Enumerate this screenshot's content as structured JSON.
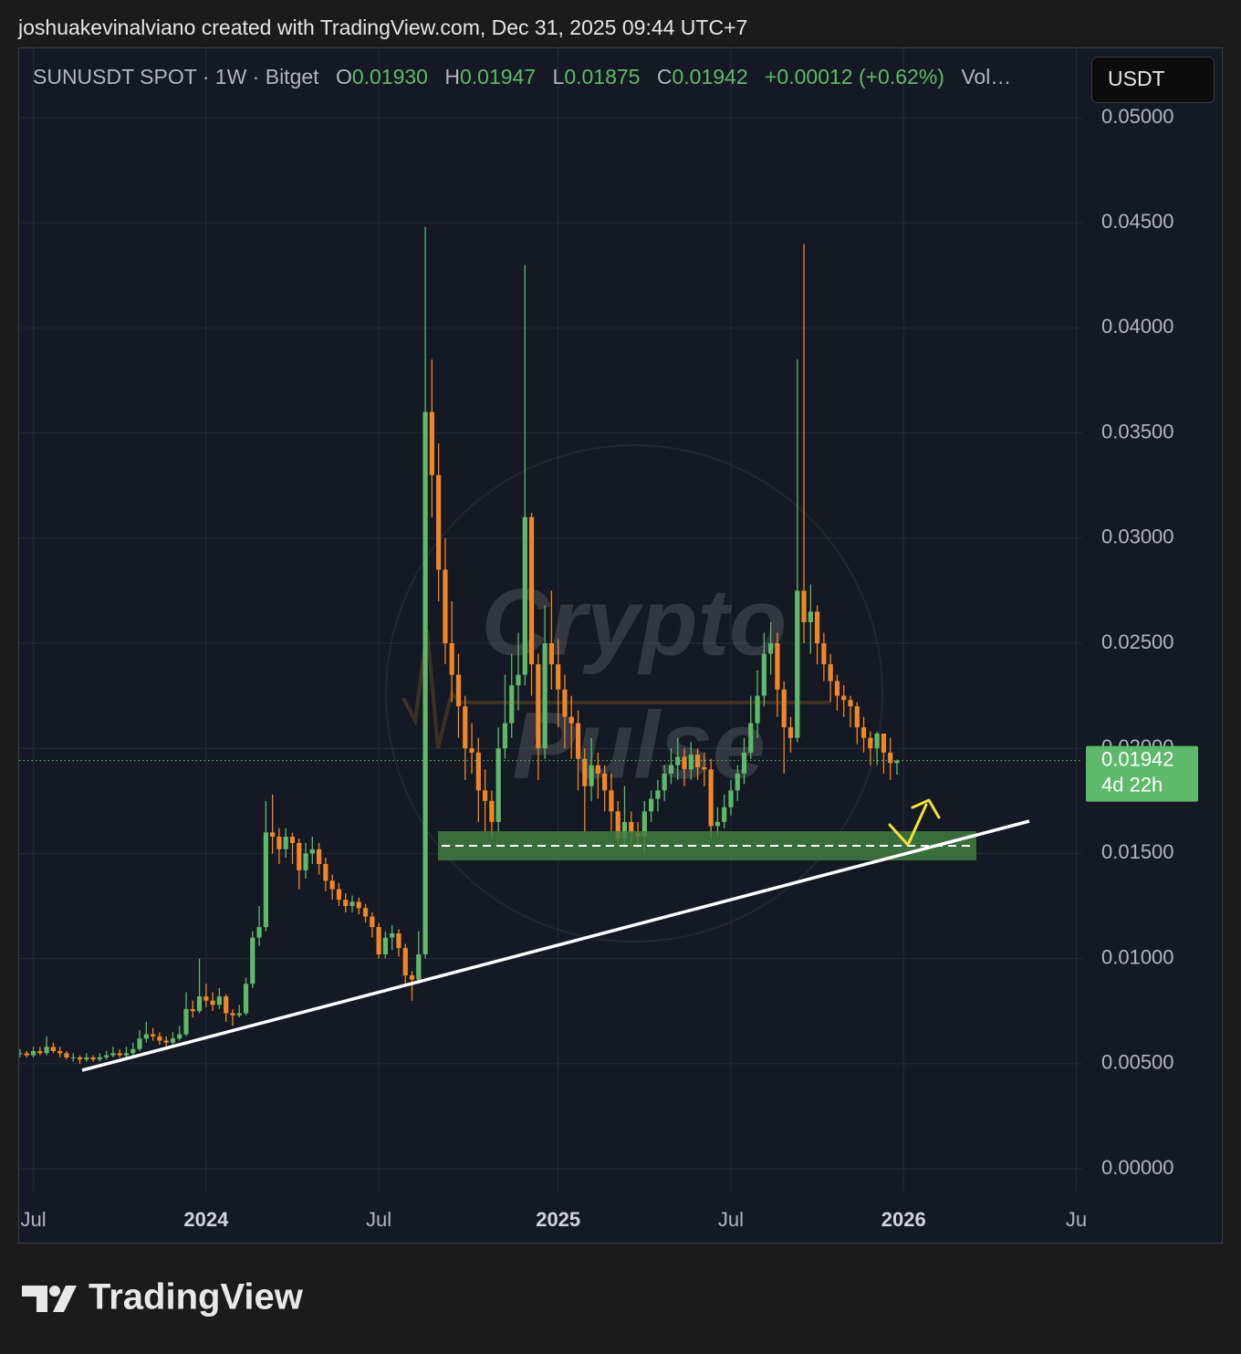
{
  "header": {
    "credit": "joshuakevinalviano created with TradingView.com, Dec 31, 2025 09:44 UTC+7"
  },
  "legend": {
    "symbol": "SUNUSDT SPOT · 1W · Bitget",
    "open_label": "O",
    "open": "0.01930",
    "high_label": "H",
    "high": "0.01947",
    "low_label": "L",
    "low": "0.01875",
    "close_label": "C",
    "close": "0.01942",
    "change": "+0.00012 (+0.62%)",
    "volume": "Vol…"
  },
  "currency_button": "USDT",
  "watermark": {
    "line1": "Crypto",
    "line2": "Pulse"
  },
  "brand": "TradingView",
  "chart_data": {
    "type": "candlestick",
    "up_color": "#5fb96a",
    "down_color": "#f0862a",
    "grid": true,
    "categories": [
      null,
      null,
      "Jul",
      null,
      null,
      null,
      null,
      null,
      null,
      null,
      null,
      null,
      null,
      null,
      null,
      null,
      null,
      null,
      null,
      null,
      null,
      null,
      null,
      null,
      null,
      null,
      null,
      null,
      "2024",
      null,
      null,
      null,
      null,
      null,
      null,
      null,
      null,
      null,
      null,
      null,
      null,
      null,
      null,
      null,
      null,
      null,
      null,
      null,
      null,
      null,
      null,
      null,
      null,
      null,
      "Jul",
      null,
      null,
      null,
      null,
      null,
      null,
      null,
      null,
      null,
      null,
      null,
      null,
      null,
      null,
      null,
      null,
      null,
      null,
      null,
      null,
      null,
      null,
      null,
      null,
      null,
      null,
      "2025",
      null,
      null,
      null,
      null,
      null,
      null,
      null,
      null,
      null,
      null,
      null,
      null,
      null,
      null,
      null,
      null,
      null,
      null,
      null,
      null,
      null,
      null,
      null,
      null,
      null,
      "Jul",
      null,
      null,
      null,
      null,
      null,
      null,
      null,
      null,
      null,
      null,
      null,
      null,
      null,
      null,
      null,
      null,
      null,
      null,
      null,
      null,
      null,
      null,
      null,
      null,
      null,
      "2026",
      null,
      null,
      null,
      null,
      null,
      null,
      null,
      null,
      null,
      null,
      null,
      null,
      null,
      null,
      null,
      null,
      null,
      null,
      null,
      null,
      null,
      null,
      null,
      null,
      null,
      "Ju"
    ],
    "open": [
      0.0055,
      0.0055,
      0.0054,
      0.0056,
      0.0055,
      0.0058,
      0.0056,
      0.0055,
      0.0053,
      0.0053,
      0.0052,
      0.0053,
      0.0052,
      0.0053,
      0.0054,
      0.0055,
      0.0054,
      0.0055,
      0.0057,
      0.0062,
      0.0064,
      0.0063,
      0.0061,
      0.006,
      0.0062,
      0.0064,
      0.0076,
      0.0075,
      0.0082,
      0.008,
      0.0078,
      0.0082,
      0.0074,
      0.0073,
      0.0074,
      0.0088,
      0.011,
      0.0115,
      0.016,
      0.0158,
      0.0152,
      0.0158,
      0.0155,
      0.0142,
      0.015,
      0.0152,
      0.0145,
      0.0137,
      0.0133,
      0.0128,
      0.0125,
      0.0127,
      0.0124,
      0.012,
      0.0115,
      0.0102,
      0.011,
      0.0112,
      0.0105,
      0.0092,
      0.009,
      0.0102,
      0.036,
      0.033,
      0.0285,
      0.025,
      0.0235,
      0.022,
      0.02,
      0.0198,
      0.018,
      0.0175,
      0.0165,
      0.02,
      0.0212,
      0.023,
      0.0235,
      0.031,
      0.024,
      0.02,
      0.025,
      0.024,
      0.0228,
      0.0215,
      0.0212,
      0.0195,
      0.0182,
      0.0192,
      0.0188,
      0.018,
      0.017,
      0.0157,
      0.0165,
      0.016,
      0.0158,
      0.017,
      0.0176,
      0.018,
      0.0188,
      0.0192,
      0.0196,
      0.019,
      0.0197,
      0.0191,
      0.019,
      0.0163,
      0.0165,
      0.0172,
      0.018,
      0.0188,
      0.0198,
      0.0212,
      0.0225,
      0.0245,
      0.025,
      0.0228,
      0.021,
      0.0205,
      0.0275,
      0.026,
      0.0265,
      0.025,
      0.024,
      0.0232,
      0.0225,
      0.0223,
      0.022,
      0.021,
      0.0205,
      0.02,
      0.0207,
      0.0198,
      0.0193,
      null,
      null,
      null,
      null,
      null,
      null,
      null,
      null,
      null,
      null,
      null,
      null,
      null,
      null,
      null,
      null,
      null,
      null,
      null,
      null,
      null,
      null,
      null,
      null,
      null,
      null,
      null
    ],
    "high": [
      0.0057,
      0.0056,
      0.0058,
      0.0058,
      0.0063,
      0.006,
      0.0058,
      0.0056,
      0.0055,
      0.0054,
      0.0055,
      0.0054,
      0.0055,
      0.0056,
      0.0058,
      0.0057,
      0.0058,
      0.006,
      0.0066,
      0.007,
      0.0067,
      0.0065,
      0.0063,
      0.0065,
      0.0068,
      0.0084,
      0.008,
      0.01,
      0.0088,
      0.0084,
      0.0086,
      0.0083,
      0.0076,
      0.0078,
      0.0091,
      0.0113,
      0.0125,
      0.0175,
      0.0178,
      0.0162,
      0.0162,
      0.016,
      0.0157,
      0.0155,
      0.0158,
      0.0155,
      0.0148,
      0.014,
      0.0136,
      0.0131,
      0.013,
      0.0129,
      0.0126,
      0.0122,
      0.0117,
      0.0113,
      0.0116,
      0.0114,
      0.0107,
      0.0094,
      0.0113,
      0.0448,
      0.0385,
      0.0345,
      0.03,
      0.027,
      0.0245,
      0.0225,
      0.0212,
      0.0205,
      0.019,
      0.018,
      0.021,
      0.0235,
      0.0245,
      0.0255,
      0.043,
      0.0312,
      0.0245,
      0.0268,
      0.0275,
      0.0252,
      0.0235,
      0.0225,
      0.0218,
      0.02,
      0.0205,
      0.0198,
      0.0192,
      0.0188,
      0.0175,
      0.0182,
      0.017,
      0.0165,
      0.0175,
      0.018,
      0.0185,
      0.0192,
      0.02,
      0.0205,
      0.02,
      0.0203,
      0.02,
      0.0198,
      0.0195,
      0.0172,
      0.0178,
      0.0185,
      0.0192,
      0.0205,
      0.0225,
      0.0237,
      0.0255,
      0.026,
      0.0255,
      0.0232,
      0.0215,
      0.0385,
      0.044,
      0.0278,
      0.0268,
      0.0255,
      0.0245,
      0.0235,
      0.023,
      0.0225,
      0.0222,
      0.0215,
      0.0208,
      0.0208,
      0.0207,
      0.0205,
      0.01947,
      null,
      null,
      null,
      null,
      null,
      null,
      null,
      null,
      null,
      null,
      null,
      null,
      null,
      null,
      null,
      null,
      null,
      null,
      null,
      null,
      null,
      null,
      null,
      null,
      null,
      null,
      null
    ],
    "low": [
      0.0053,
      0.0053,
      0.0053,
      0.0054,
      0.0054,
      0.0055,
      0.0053,
      0.0052,
      0.0051,
      0.005,
      0.0051,
      0.0051,
      0.0051,
      0.0052,
      0.0053,
      0.0053,
      0.0053,
      0.0054,
      0.0056,
      0.006,
      0.0061,
      0.0059,
      0.0058,
      0.0059,
      0.0061,
      0.0063,
      0.0072,
      0.0074,
      0.0077,
      0.0075,
      0.0076,
      0.007,
      0.0068,
      0.0072,
      0.0073,
      0.0086,
      0.0106,
      0.0113,
      0.015,
      0.0145,
      0.0148,
      0.0145,
      0.0133,
      0.0138,
      0.0145,
      0.014,
      0.0132,
      0.0128,
      0.0125,
      0.0122,
      0.0122,
      0.0121,
      0.0117,
      0.011,
      0.01,
      0.01,
      0.0104,
      0.0101,
      0.0088,
      0.008,
      0.0088,
      0.01,
      0.031,
      0.027,
      0.024,
      0.0222,
      0.0205,
      0.0185,
      0.0188,
      0.0165,
      0.016,
      0.0157,
      0.016,
      0.0195,
      0.0205,
      0.0218,
      0.023,
      0.0225,
      0.0185,
      0.0195,
      0.0228,
      0.021,
      0.02,
      0.0195,
      0.018,
      0.016,
      0.0175,
      0.0176,
      0.017,
      0.016,
      0.0153,
      0.0153,
      0.0153,
      0.0152,
      0.015,
      0.0165,
      0.017,
      0.0175,
      0.0183,
      0.0185,
      0.0182,
      0.0185,
      0.0185,
      0.0182,
      0.0157,
      0.0158,
      0.0162,
      0.0168,
      0.0175,
      0.0183,
      0.0195,
      0.0205,
      0.022,
      0.0235,
      0.0215,
      0.0188,
      0.0198,
      0.0203,
      0.025,
      0.0245,
      0.024,
      0.0232,
      0.0222,
      0.0218,
      0.0215,
      0.021,
      0.0202,
      0.0198,
      0.0192,
      0.0192,
      0.0188,
      0.0185,
      0.01875,
      null,
      null,
      null,
      null,
      null,
      null,
      null,
      null,
      null,
      null,
      null,
      null,
      null,
      null,
      null,
      null,
      null,
      null,
      null,
      null,
      null,
      null,
      null,
      null,
      null,
      null,
      null
    ],
    "close": [
      0.0055,
      0.0054,
      0.0056,
      0.0055,
      0.0058,
      0.0056,
      0.0055,
      0.0053,
      0.0053,
      0.0052,
      0.0053,
      0.0052,
      0.0053,
      0.0054,
      0.0055,
      0.0054,
      0.0055,
      0.0057,
      0.0062,
      0.0064,
      0.0063,
      0.0061,
      0.006,
      0.0062,
      0.0064,
      0.0076,
      0.0075,
      0.0082,
      0.008,
      0.0078,
      0.0082,
      0.0074,
      0.0073,
      0.0074,
      0.0088,
      0.011,
      0.0115,
      0.016,
      0.0158,
      0.0152,
      0.0158,
      0.0155,
      0.0142,
      0.015,
      0.0152,
      0.0145,
      0.0137,
      0.0133,
      0.0128,
      0.0125,
      0.0127,
      0.0124,
      0.012,
      0.0115,
      0.0102,
      0.011,
      0.0112,
      0.0105,
      0.0092,
      0.009,
      0.0102,
      0.036,
      0.033,
      0.0285,
      0.025,
      0.0235,
      0.022,
      0.02,
      0.0198,
      0.018,
      0.0175,
      0.0165,
      0.02,
      0.0212,
      0.023,
      0.0235,
      0.031,
      0.024,
      0.02,
      0.025,
      0.024,
      0.0228,
      0.0215,
      0.0212,
      0.0195,
      0.0182,
      0.0192,
      0.0188,
      0.018,
      0.017,
      0.0157,
      0.0165,
      0.016,
      0.0158,
      0.017,
      0.0176,
      0.018,
      0.0188,
      0.0192,
      0.0196,
      0.019,
      0.0197,
      0.0191,
      0.019,
      0.0163,
      0.0165,
      0.0172,
      0.018,
      0.0188,
      0.0198,
      0.0212,
      0.0225,
      0.0245,
      0.025,
      0.0228,
      0.021,
      0.0205,
      0.0275,
      0.026,
      0.0265,
      0.025,
      0.024,
      0.0232,
      0.0225,
      0.0223,
      0.022,
      0.021,
      0.0205,
      0.02,
      0.0207,
      0.0198,
      0.0193,
      0.01942,
      null,
      null,
      null,
      null,
      null,
      null,
      null,
      null,
      null,
      null,
      null,
      null,
      null,
      null,
      null,
      null,
      null,
      null,
      null,
      null,
      null,
      null,
      null,
      null,
      null,
      null,
      null
    ],
    "ylim": [
      -0.00104,
      0.05334
    ],
    "yticks": [
      {
        "value": 0,
        "label": "0.00000"
      },
      {
        "value": 0.005,
        "label": "0.00500"
      },
      {
        "value": 0.01,
        "label": "0.01000"
      },
      {
        "value": 0.015,
        "label": "0.01500"
      },
      {
        "value": 0.02,
        "label": "0.02000"
      },
      {
        "value": 0.025,
        "label": "0.02500"
      },
      {
        "value": 0.03,
        "label": "0.03000"
      },
      {
        "value": 0.035,
        "label": "0.03500"
      },
      {
        "value": 0.04,
        "label": "0.04000"
      },
      {
        "value": 0.045,
        "label": "0.04500"
      },
      {
        "value": 0.05,
        "label": "0.05000"
      }
    ],
    "last_price": {
      "value": 0.01942,
      "label": "0.01942",
      "countdown": "4d 22h"
    }
  }
}
